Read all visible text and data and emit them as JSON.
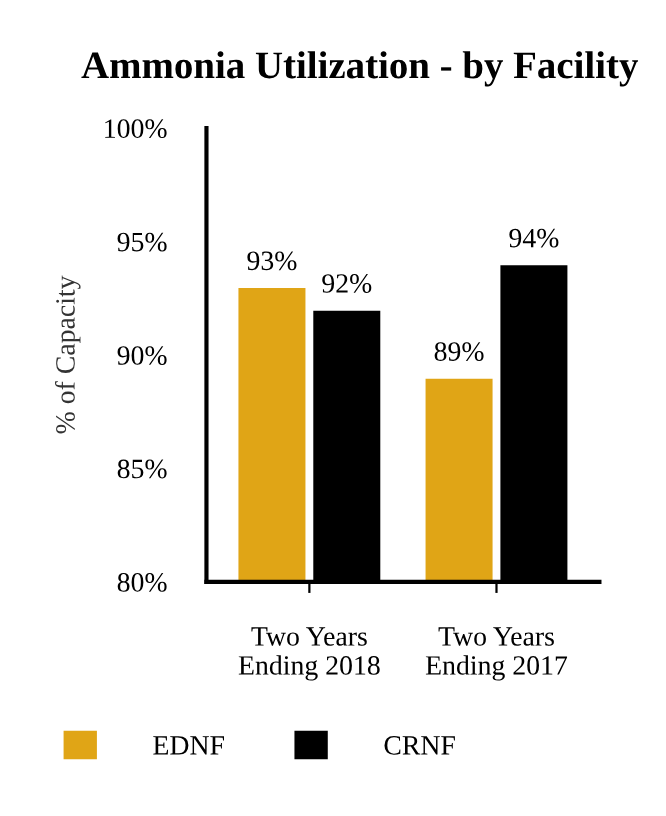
{
  "chart_data": {
    "type": "bar",
    "title": "Ammonia Utilization - by Facility",
    "ylabel": "% of Capacity",
    "categories": [
      "Two Years\nEnding 2018",
      "Two Years\nEnding 2017"
    ],
    "series": [
      {
        "name": "EDNF",
        "color": "#e0a516",
        "values": [
          93,
          89
        ],
        "value_labels": [
          "93%",
          "89%"
        ]
      },
      {
        "name": "CRNF",
        "color": "#000000",
        "values": [
          92,
          94
        ],
        "value_labels": [
          "92%",
          "94%"
        ]
      }
    ],
    "ylim": [
      80,
      100
    ],
    "yticks": [
      {
        "value": 80,
        "label": "80%"
      },
      {
        "value": 85,
        "label": "85%"
      },
      {
        "value": 90,
        "label": "90%"
      },
      {
        "value": 95,
        "label": "95%"
      },
      {
        "value": 100,
        "label": "100%"
      }
    ],
    "grid": false,
    "legend": "bottom"
  }
}
